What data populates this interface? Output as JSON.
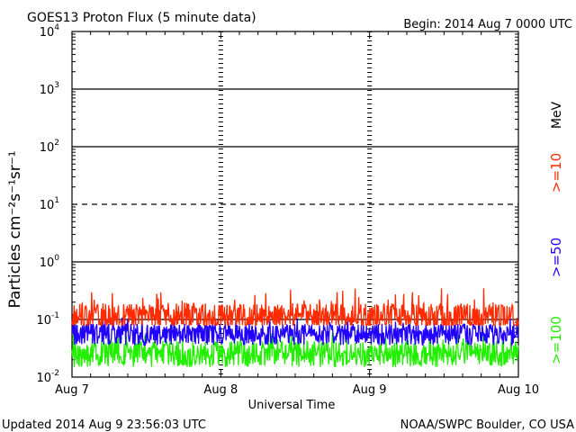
{
  "header": {
    "title": "GOES13 Proton Flux (5 minute data)",
    "begin": "Begin: 2014 Aug 7 0000 UTC"
  },
  "footer": {
    "updated": "Updated 2014 Aug  9 23:56:03 UTC",
    "credit": "NOAA/SWPC Boulder, CO USA"
  },
  "chart_data": {
    "type": "line",
    "title": "GOES13 Proton Flux (5 minute data)",
    "xlabel": "Universal Time",
    "ylabel": "Particles cm⁻²s⁻¹sr⁻¹",
    "yscale": "log",
    "ylim": [
      0.01,
      10000
    ],
    "xlim": [
      "2014-08-07 00:00",
      "2014-08-10 00:00"
    ],
    "x_ticks": [
      "Aug 7",
      "Aug 8",
      "Aug 9",
      "Aug 10"
    ],
    "y_ticks": [
      {
        "base": "10",
        "exp": "-2"
      },
      {
        "base": "10",
        "exp": "-1"
      },
      {
        "base": "10",
        "exp": "0"
      },
      {
        "base": "10",
        "exp": "1"
      },
      {
        "base": "10",
        "exp": "2"
      },
      {
        "base": "10",
        "exp": "3"
      },
      {
        "base": "10",
        "exp": "4"
      }
    ],
    "threshold_lines": [
      {
        "value": 1000,
        "style": "solid"
      },
      {
        "value": 100,
        "style": "solid"
      },
      {
        "value": 10,
        "style": "dashed"
      },
      {
        "value": 1,
        "style": "solid"
      },
      {
        "value": 0.1,
        "style": "solid"
      }
    ],
    "unit_label": "MeV",
    "series": [
      {
        "name": ">=10",
        "color": "#ff2a00",
        "baseline": 0.11,
        "range": [
          0.08,
          0.35
        ]
      },
      {
        "name": ">=50",
        "color": "#2200ff",
        "baseline": 0.055,
        "range": [
          0.035,
          0.11
        ]
      },
      {
        "name": ">=100",
        "color": "#22ee00",
        "baseline": 0.025,
        "range": [
          0.015,
          0.06
        ]
      }
    ]
  }
}
